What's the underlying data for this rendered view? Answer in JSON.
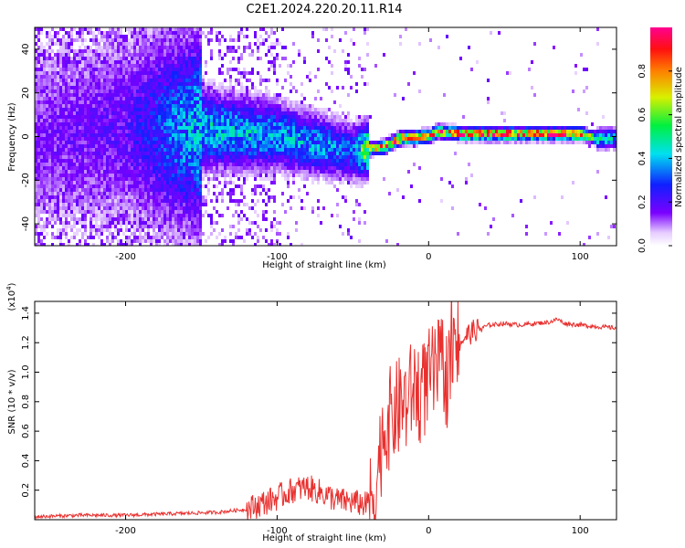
{
  "title": "C2E1.2024.220.20.11.R14",
  "colors": {
    "snr_line": "#e8302e",
    "axis": "#000000",
    "background": "#ffffff"
  },
  "chart_data": [
    {
      "type": "heatmap",
      "xlabel": "Height of straight line (km)",
      "ylabel": "Frequency (Hz)",
      "xlim": [
        -260,
        124
      ],
      "ylim": [
        -50,
        50
      ],
      "xticks": [
        -200,
        -100,
        0,
        100
      ],
      "yticks": [
        -40,
        -20,
        0,
        20,
        40
      ],
      "colorbar": {
        "label": "Normalized spectral amplitude",
        "range": [
          0,
          1
        ],
        "ticks": [
          "0.0",
          "0.2",
          "0.4",
          "0.6",
          "0.8"
        ],
        "colormap": "rainbow (white-violet-blue-cyan-green-yellow-red-magenta)"
      },
      "ridge": {
        "description": "dominant spectral line frequency vs height",
        "x": [
          -260,
          -200,
          -150,
          -100,
          -75,
          -50,
          -40,
          -30,
          -20,
          0,
          5,
          20,
          100,
          110,
          124
        ],
        "freq_hz": [
          0,
          5,
          4,
          1,
          -3,
          -6,
          -5,
          -4,
          0,
          1,
          3,
          2,
          2,
          0,
          0
        ],
        "peak_amplitude": [
          0.15,
          0.2,
          0.45,
          0.4,
          0.4,
          0.35,
          0.75,
          0.85,
          0.9,
          0.9,
          0.85,
          0.95,
          0.95,
          0.5,
          0.4
        ]
      }
    },
    {
      "type": "line",
      "xlabel": "Height of straight line (km)",
      "ylabel": "SNR (10 * v/v)",
      "y_multiplier": "(x10",
      "y_multiplier_exponent": "4",
      "y_multiplier_close": ")",
      "xlim": [
        -260,
        124
      ],
      "ylim": [
        0,
        1.48
      ],
      "xticks": [
        -200,
        -100,
        0,
        100
      ],
      "yticks": [
        0.2,
        0.4,
        0.6,
        0.8,
        1.0,
        1.2,
        1.4
      ],
      "yticklabels": [
        "0.2",
        "0.4",
        "0.6",
        "0.8",
        "1.0",
        "1.2",
        "1.4"
      ],
      "series": [
        {
          "x": [
            -260,
            -230,
            -200,
            -170,
            -140,
            -120,
            -110,
            -100,
            -90,
            -80,
            -75,
            -70,
            -60,
            -50,
            -40,
            -35,
            -32,
            -30,
            -25,
            -20,
            -18,
            -15,
            -10,
            -5,
            0,
            5,
            10,
            12,
            15,
            20,
            25,
            30,
            35,
            40,
            50,
            60,
            70,
            80,
            85,
            90,
            100,
            110,
            124
          ],
          "y": [
            0.02,
            0.03,
            0.03,
            0.04,
            0.05,
            0.07,
            0.11,
            0.15,
            0.2,
            0.22,
            0.2,
            0.18,
            0.13,
            0.12,
            0.1,
            0.2,
            0.45,
            0.6,
            0.7,
            0.75,
            0.8,
            0.78,
            0.9,
            0.85,
            0.95,
            1.0,
            1.05,
            0.95,
            1.1,
            1.2,
            1.25,
            1.28,
            1.3,
            1.32,
            1.33,
            1.32,
            1.33,
            1.34,
            1.36,
            1.33,
            1.32,
            1.31,
            1.3
          ]
        }
      ]
    }
  ]
}
